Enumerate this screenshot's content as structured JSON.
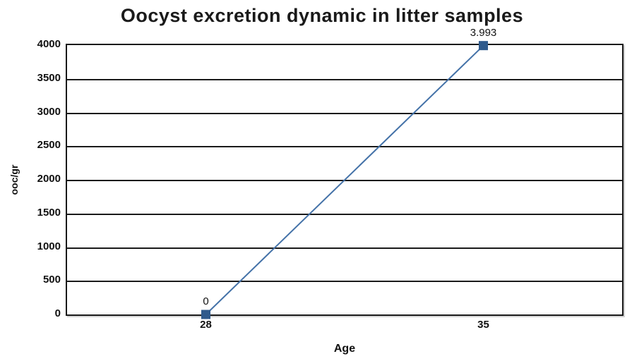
{
  "title": "Oocyst excretion dynamic in litter samples",
  "chart_data": {
    "type": "line",
    "title": "Oocyst excretion dynamic in litter samples",
    "xlabel": "Age",
    "ylabel": "ooc/gr",
    "categories": [
      "28",
      "35"
    ],
    "series": [
      {
        "name": "ooc/gr",
        "values": [
          0,
          3993
        ]
      }
    ],
    "point_labels": [
      "0",
      "3.993"
    ],
    "ylim": [
      0,
      4000
    ],
    "yticks": [
      0,
      500,
      1000,
      1500,
      2000,
      2500,
      3000,
      3500,
      4000
    ],
    "grid": "horizontal-major",
    "legend": "none",
    "line_color": "#4472A8",
    "marker_color": "#2F5A8C",
    "marker_shape": "square",
    "gridline_color": "#1a1a1a",
    "plot_border_color": "#1a1a1a"
  }
}
